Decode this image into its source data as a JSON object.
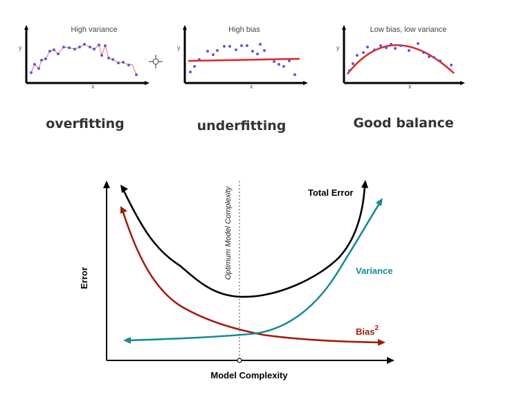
{
  "panels": [
    {
      "title": "High variance",
      "caption": "overfitting",
      "xlabel": "x",
      "ylabel": "y"
    },
    {
      "title": "High bias",
      "caption": "underfitting",
      "xlabel": "x",
      "ylabel": "y"
    },
    {
      "title": "Low bias, low variance",
      "caption": "Good balance",
      "xlabel": "x",
      "ylabel": "y"
    }
  ],
  "tradeoff": {
    "xlabel": "Model Complexity",
    "ylabel": "Error",
    "optimum_label": "Optimum Model Complexity",
    "total_error_label": "Total Error",
    "variance_label": "Variance",
    "bias_label": "Bias",
    "bias_exponent": "2"
  },
  "colors": {
    "total_error": "#000000",
    "variance": "#138c96",
    "bias": "#a31b0a",
    "fit_line": "#e8211d",
    "points": "#5b5bd6"
  }
}
